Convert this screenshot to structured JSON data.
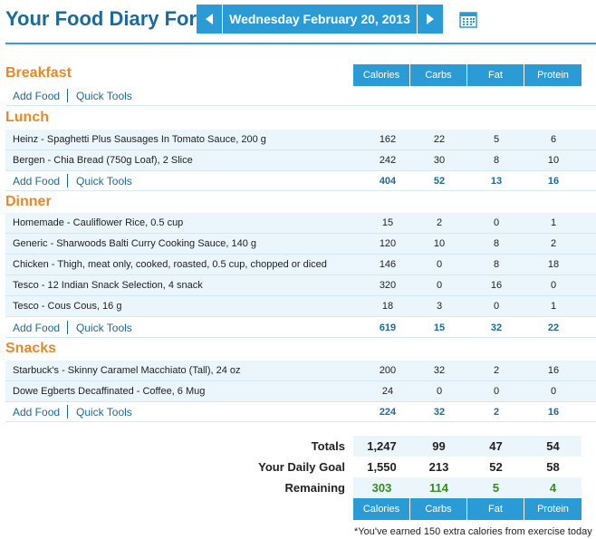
{
  "header": {
    "title": "Your Food Diary For:",
    "date": "Wednesday February 20, 2013"
  },
  "columns": [
    "Calories",
    "Carbs",
    "Fat",
    "Protein"
  ],
  "actions": {
    "add_food": "Add Food",
    "quick_tools": "Quick Tools"
  },
  "breakfast": {
    "title": "Breakfast"
  },
  "lunch": {
    "title": "Lunch",
    "items": [
      {
        "name": "Heinz - Spaghetti Plus Sausages In Tomato Sauce, 200 g",
        "calories": "162",
        "carbs": "22",
        "fat": "5",
        "protein": "6"
      },
      {
        "name": "Bergen - Chia Bread (750g Loaf), 2 Slice",
        "calories": "242",
        "carbs": "30",
        "fat": "8",
        "protein": "10"
      }
    ],
    "totals": {
      "calories": "404",
      "carbs": "52",
      "fat": "13",
      "protein": "16"
    }
  },
  "dinner": {
    "title": "Dinner",
    "items": [
      {
        "name": "Homemade - Cauliflower Rice, 0.5 cup",
        "calories": "15",
        "carbs": "2",
        "fat": "0",
        "protein": "1"
      },
      {
        "name": "Generic - Sharwoods Balti Curry Cooking Sauce, 140 g",
        "calories": "120",
        "carbs": "10",
        "fat": "8",
        "protein": "2"
      },
      {
        "name": "Chicken - Thigh, meat only, cooked, roasted, 0.5 cup, chopped or diced",
        "calories": "146",
        "carbs": "0",
        "fat": "8",
        "protein": "18"
      },
      {
        "name": "Tesco - 12 Indian Snack Selection, 4 snack",
        "calories": "320",
        "carbs": "0",
        "fat": "16",
        "protein": "0"
      },
      {
        "name": "Tesco - Cous Cous, 16 g",
        "calories": "18",
        "carbs": "3",
        "fat": "0",
        "protein": "1"
      }
    ],
    "totals": {
      "calories": "619",
      "carbs": "15",
      "fat": "32",
      "protein": "22"
    }
  },
  "snacks": {
    "title": "Snacks",
    "items": [
      {
        "name": "Starbuck's - Skinny Caramel Macchiato (Tall), 24 oz",
        "calories": "200",
        "carbs": "32",
        "fat": "2",
        "protein": "16"
      },
      {
        "name": "Dowe Egberts Decaffinated - Coffee, 6 Mug",
        "calories": "24",
        "carbs": "0",
        "fat": "0",
        "protein": "0"
      }
    ],
    "totals": {
      "calories": "224",
      "carbs": "32",
      "fat": "2",
      "protein": "16"
    }
  },
  "summary": {
    "totals": {
      "label": "Totals",
      "calories": "1,247",
      "carbs": "99",
      "fat": "47",
      "protein": "54"
    },
    "goal": {
      "label": "Your Daily Goal",
      "calories": "1,550",
      "carbs": "213",
      "fat": "52",
      "protein": "58"
    },
    "remaining": {
      "label": "Remaining",
      "calories": "303",
      "carbs": "114",
      "fat": "5",
      "protein": "4"
    }
  },
  "footnote": "*You've earned 150 extra calories from exercise today",
  "icons": {
    "prev": "arrow-left-icon",
    "next": "arrow-right-icon",
    "calendar": "calendar-icon"
  },
  "colors": {
    "accent": "#2b9bd5",
    "section": "#e58a2a",
    "link": "#1d6a96",
    "remaining": "#3a8a1e"
  }
}
